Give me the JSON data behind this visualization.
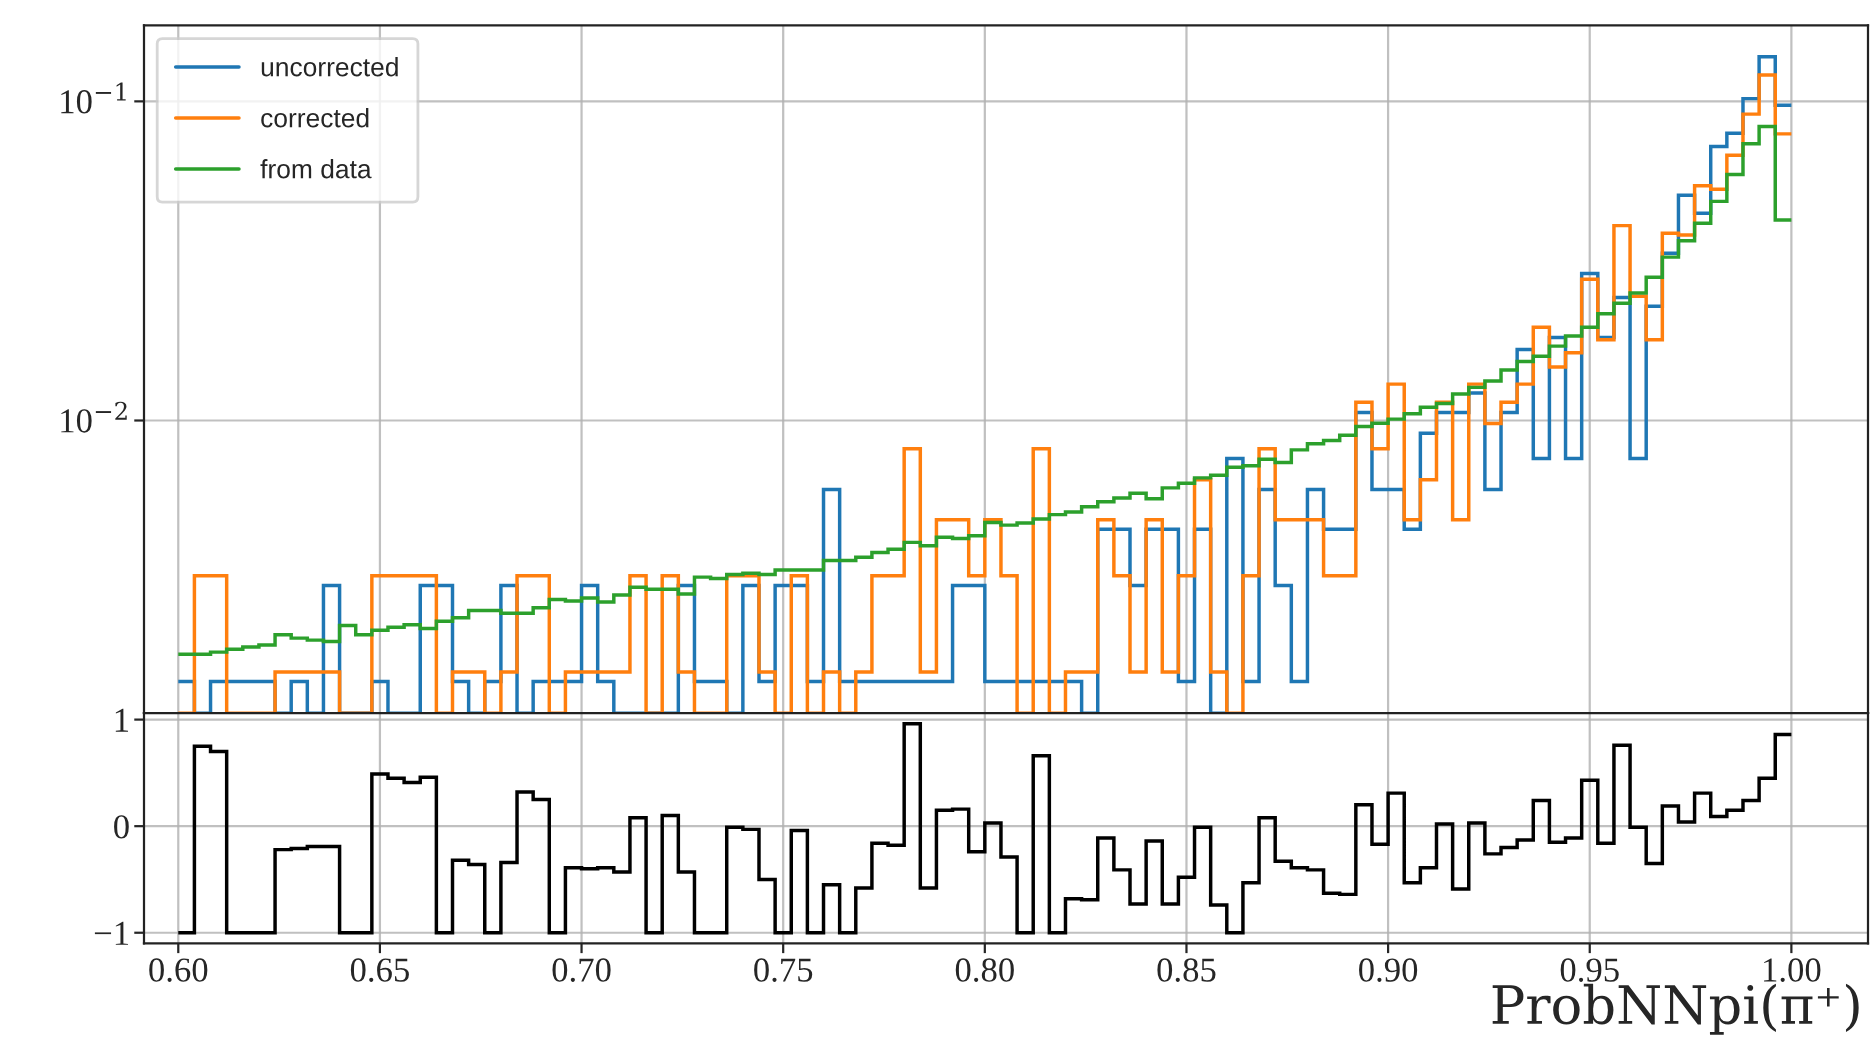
{
  "chart_data": [
    {
      "type": "histogram",
      "bins": [
        0.6,
        0.604,
        0.608,
        0.612,
        0.616,
        0.62,
        0.624,
        0.628,
        0.632,
        0.636,
        0.64,
        0.644,
        0.648,
        0.652,
        0.656,
        0.66,
        0.664,
        0.668,
        0.672,
        0.676,
        0.68,
        0.684,
        0.688,
        0.692,
        0.696,
        0.7,
        0.704,
        0.708,
        0.712,
        0.716,
        0.72,
        0.724,
        0.728,
        0.732,
        0.736,
        0.74,
        0.744,
        0.748,
        0.752,
        0.756,
        0.76,
        0.764,
        0.768,
        0.772,
        0.776,
        0.78,
        0.784,
        0.788,
        0.792,
        0.796,
        0.8,
        0.804,
        0.808,
        0.812,
        0.816,
        0.82,
        0.824,
        0.828,
        0.832,
        0.836,
        0.84,
        0.844,
        0.848,
        0.852,
        0.856,
        0.86,
        0.864,
        0.868,
        0.872,
        0.876,
        0.88,
        0.884,
        0.888,
        0.892,
        0.896,
        0.9,
        0.904,
        0.908,
        0.912,
        0.916,
        0.92,
        0.924,
        0.928,
        0.932,
        0.936,
        0.94,
        0.944,
        0.948,
        0.952,
        0.956,
        0.96,
        0.964,
        0.968,
        0.972,
        0.976,
        0.98,
        0.984,
        0.988,
        0.992,
        0.996,
        1.0
      ],
      "series": [
        {
          "name": "uncorrected",
          "color": "#1f77b4",
          "values": [
            0.00152,
            null,
            0.00152,
            0.00152,
            0.00152,
            0.00152,
            null,
            0.00152,
            null,
            0.00304,
            null,
            null,
            0.00152,
            null,
            null,
            0.00304,
            0.00304,
            0.00152,
            null,
            0.00152,
            0.00304,
            null,
            0.00152,
            0.00152,
            0.00152,
            0.00304,
            0.00152,
            null,
            null,
            null,
            null,
            0.00304,
            0.00152,
            0.00152,
            null,
            0.00304,
            0.00152,
            0.00304,
            0.00304,
            0.00152,
            0.00608,
            0.00152,
            0.00152,
            0.00152,
            0.00152,
            0.00152,
            0.00152,
            0.00152,
            0.00304,
            0.00304,
            0.00152,
            0.00152,
            0.00152,
            0.00152,
            0.00152,
            0.00152,
            null,
            0.00456,
            0.00456,
            0.00304,
            0.00456,
            0.00456,
            0.00152,
            0.00456,
            null,
            0.0076,
            0.00152,
            0.00608,
            0.00304,
            0.00152,
            0.00608,
            0.00456,
            0.00456,
            0.0106,
            0.00608,
            0.00608,
            0.00456,
            0.00912,
            0.0106,
            0.0106,
            0.0122,
            0.00608,
            0.0106,
            0.0167,
            0.0076,
            0.0182,
            0.0076,
            0.0289,
            0.0182,
            0.0243,
            0.0076,
            0.0228,
            0.0334,
            0.0508,
            0.0446,
            0.0722,
            0.0794,
            0.102,
            0.138,
            0.0972
          ]
        },
        {
          "name": "corrected",
          "color": "#ff7f0e",
          "values": [
            null,
            0.00326,
            0.00326,
            null,
            null,
            null,
            0.00163,
            0.00163,
            0.00163,
            0.00163,
            null,
            null,
            0.00326,
            0.00326,
            0.00326,
            0.00326,
            null,
            0.00163,
            0.00163,
            null,
            0.00163,
            0.00326,
            0.00326,
            null,
            0.00163,
            0.00163,
            0.00163,
            0.00163,
            0.00326,
            null,
            0.00326,
            0.00163,
            null,
            null,
            0.00326,
            0.00326,
            0.00163,
            null,
            0.00326,
            null,
            0.00163,
            null,
            0.00163,
            0.00326,
            0.00326,
            0.00815,
            0.00163,
            0.00489,
            0.00489,
            0.00326,
            0.00489,
            0.00326,
            null,
            0.00815,
            null,
            0.00163,
            0.00163,
            0.00489,
            0.00326,
            0.00163,
            0.00489,
            0.00163,
            0.00326,
            0.00652,
            0.00163,
            null,
            0.00326,
            0.00815,
            0.00489,
            0.00489,
            0.00489,
            0.00326,
            0.00326,
            0.0114,
            0.00815,
            0.013,
            0.00489,
            0.00652,
            0.0114,
            0.00489,
            0.013,
            0.00978,
            0.0114,
            0.013,
            0.0196,
            0.0147,
            0.0163,
            0.0277,
            0.0179,
            0.0408,
            0.0245,
            0.0179,
            0.0386,
            0.0381,
            0.0544,
            0.053,
            0.0678,
            0.0912,
            0.121,
            0.0791
          ]
        },
        {
          "name": "from data",
          "color": "#2ca02c",
          "values": [
            0.00185,
            0.00185,
            0.00188,
            0.00192,
            0.00195,
            0.00198,
            0.00213,
            0.00208,
            0.00205,
            0.00203,
            0.00228,
            0.00213,
            0.0022,
            0.00225,
            0.00229,
            0.00223,
            0.00235,
            0.00241,
            0.00254,
            0.00254,
            0.00249,
            0.00249,
            0.00259,
            0.00275,
            0.00272,
            0.00278,
            0.0027,
            0.00284,
            0.003,
            0.00296,
            0.00296,
            0.00286,
            0.00323,
            0.0032,
            0.00329,
            0.00332,
            0.00329,
            0.0034,
            0.0034,
            0.0034,
            0.00364,
            0.00364,
            0.00373,
            0.00386,
            0.00395,
            0.00415,
            0.00405,
            0.00431,
            0.00427,
            0.00435,
            0.00479,
            0.0047,
            0.00477,
            0.00491,
            0.00507,
            0.00517,
            0.00537,
            0.00556,
            0.00572,
            0.00592,
            0.00569,
            0.00615,
            0.00636,
            0.00661,
            0.00674,
            0.00714,
            0.00721,
            0.00756,
            0.00738,
            0.00809,
            0.00845,
            0.00866,
            0.00899,
            0.00957,
            0.0098,
            0.0101,
            0.0105,
            0.011,
            0.0113,
            0.0121,
            0.0127,
            0.0133,
            0.0144,
            0.0153,
            0.0159,
            0.0171,
            0.0184,
            0.0196,
            0.0216,
            0.0233,
            0.0251,
            0.0281,
            0.0325,
            0.0366,
            0.0415,
            0.0486,
            0.059,
            0.0736,
            0.0834,
            0.0425
          ]
        }
      ],
      "xlim": [
        0.5915,
        1.019
      ],
      "xticks": [
        0.6,
        0.65,
        0.7,
        0.75,
        0.8,
        0.85,
        0.9,
        0.95,
        1.0
      ],
      "ylim": [
        0.00121,
        0.173
      ],
      "yticks": [
        {
          "value": 0.01,
          "label": "10$^{−2}$"
        },
        {
          "value": 0.1,
          "label": "10$^{−1}$"
        }
      ],
      "log": true,
      "grid": true,
      "legend": "top left",
      "tick_labels": "y"
    },
    {
      "type": "histogram",
      "bins": [
        0.6,
        0.604,
        0.608,
        0.612,
        0.616,
        0.62,
        0.624,
        0.628,
        0.632,
        0.636,
        0.64,
        0.644,
        0.648,
        0.652,
        0.656,
        0.66,
        0.664,
        0.668,
        0.672,
        0.676,
        0.68,
        0.684,
        0.688,
        0.692,
        0.696,
        0.7,
        0.704,
        0.708,
        0.712,
        0.716,
        0.72,
        0.724,
        0.728,
        0.732,
        0.736,
        0.74,
        0.744,
        0.748,
        0.752,
        0.756,
        0.76,
        0.764,
        0.768,
        0.772,
        0.776,
        0.78,
        0.784,
        0.788,
        0.792,
        0.796,
        0.8,
        0.804,
        0.808,
        0.812,
        0.816,
        0.82,
        0.824,
        0.828,
        0.832,
        0.836,
        0.84,
        0.844,
        0.848,
        0.852,
        0.856,
        0.86,
        0.864,
        0.868,
        0.872,
        0.876,
        0.88,
        0.884,
        0.888,
        0.892,
        0.896,
        0.9,
        0.904,
        0.908,
        0.912,
        0.916,
        0.92,
        0.924,
        0.928,
        0.932,
        0.936,
        0.94,
        0.944,
        0.948,
        0.952,
        0.956,
        0.96,
        0.964,
        0.968,
        0.972,
        0.976,
        0.98,
        0.984,
        0.988,
        0.992,
        0.996,
        1.0
      ],
      "series": [
        {
          "color": "#000000",
          "values": [
            -1,
            0.75,
            0.7,
            -1,
            -1,
            -1,
            -0.22,
            -0.21,
            -0.19,
            -0.19,
            -1,
            -1,
            0.49,
            0.45,
            0.41,
            0.46,
            -1,
            -0.32,
            -0.36,
            -1,
            -0.34,
            0.32,
            0.25,
            -1,
            -0.39,
            -0.4,
            -0.39,
            -0.43,
            0.08,
            -1,
            0.1,
            -0.43,
            -1,
            -1,
            -0.01,
            -0.03,
            -0.5,
            -1,
            -0.04,
            -1,
            -0.55,
            -1,
            -0.58,
            -0.16,
            -0.18,
            0.96,
            -0.58,
            0.15,
            0.16,
            -0.24,
            0.03,
            -0.29,
            -1,
            0.66,
            -1,
            -0.68,
            -0.69,
            -0.11,
            -0.41,
            -0.73,
            -0.14,
            -0.73,
            -0.48,
            -0.01,
            -0.74,
            -1,
            -0.53,
            0.08,
            -0.33,
            -0.39,
            -0.41,
            -0.63,
            -0.64,
            0.2,
            -0.17,
            0.31,
            -0.53,
            -0.39,
            0.02,
            -0.59,
            0.03,
            -0.26,
            -0.2,
            -0.13,
            0.24,
            -0.15,
            -0.11,
            0.43,
            -0.16,
            0.76,
            -0.01,
            -0.35,
            0.19,
            0.04,
            0.31,
            0.09,
            0.15,
            0.24,
            0.45,
            0.86
          ]
        }
      ],
      "xlim": [
        0.5915,
        1.019
      ],
      "xticks": [
        {
          "value": 0.6,
          "label": "0.60"
        },
        {
          "value": 0.65,
          "label": "0.65"
        },
        {
          "value": 0.7,
          "label": "0.70"
        },
        {
          "value": 0.75,
          "label": "0.75"
        },
        {
          "value": 0.8,
          "label": "0.80"
        },
        {
          "value": 0.85,
          "label": "0.85"
        },
        {
          "value": 0.9,
          "label": "0.90"
        },
        {
          "value": 0.95,
          "label": "0.95"
        },
        {
          "value": 1.0,
          "label": "1.00"
        }
      ],
      "ylim": [
        -1.1,
        1.06
      ],
      "yticks": [
        {
          "value": -1,
          "label": "−1"
        },
        0,
        1
      ],
      "xlabel": "ProbNNpi(π⁺)",
      "grid": true
    }
  ]
}
